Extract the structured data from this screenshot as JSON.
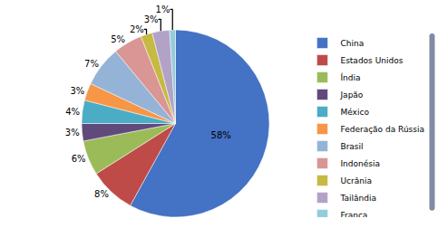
{
  "chart_data": {
    "type": "pie",
    "categories": [
      "China",
      "Estados Unidos",
      "Índia",
      "Japão",
      "México",
      "Federação da Rússia",
      "Brasil",
      "Indonésia",
      "Ucrânia",
      "Tailândia",
      "França"
    ],
    "values": [
      58,
      8,
      6,
      3,
      4,
      3,
      7,
      5,
      2,
      3,
      1
    ],
    "value_labels": [
      "58%",
      "8%",
      "6%",
      "3%",
      "4%",
      "3%",
      "7%",
      "5%",
      "2%",
      "3%",
      "1%"
    ],
    "colors": [
      "#4472C4",
      "#BE4B48",
      "#9BBB59",
      "#604A7B",
      "#4BACC6",
      "#F79646",
      "#95B3D7",
      "#D99694",
      "#C6B944",
      "#B3A2C7",
      "#93CDDD"
    ],
    "data_labels": true,
    "legend": "right"
  }
}
